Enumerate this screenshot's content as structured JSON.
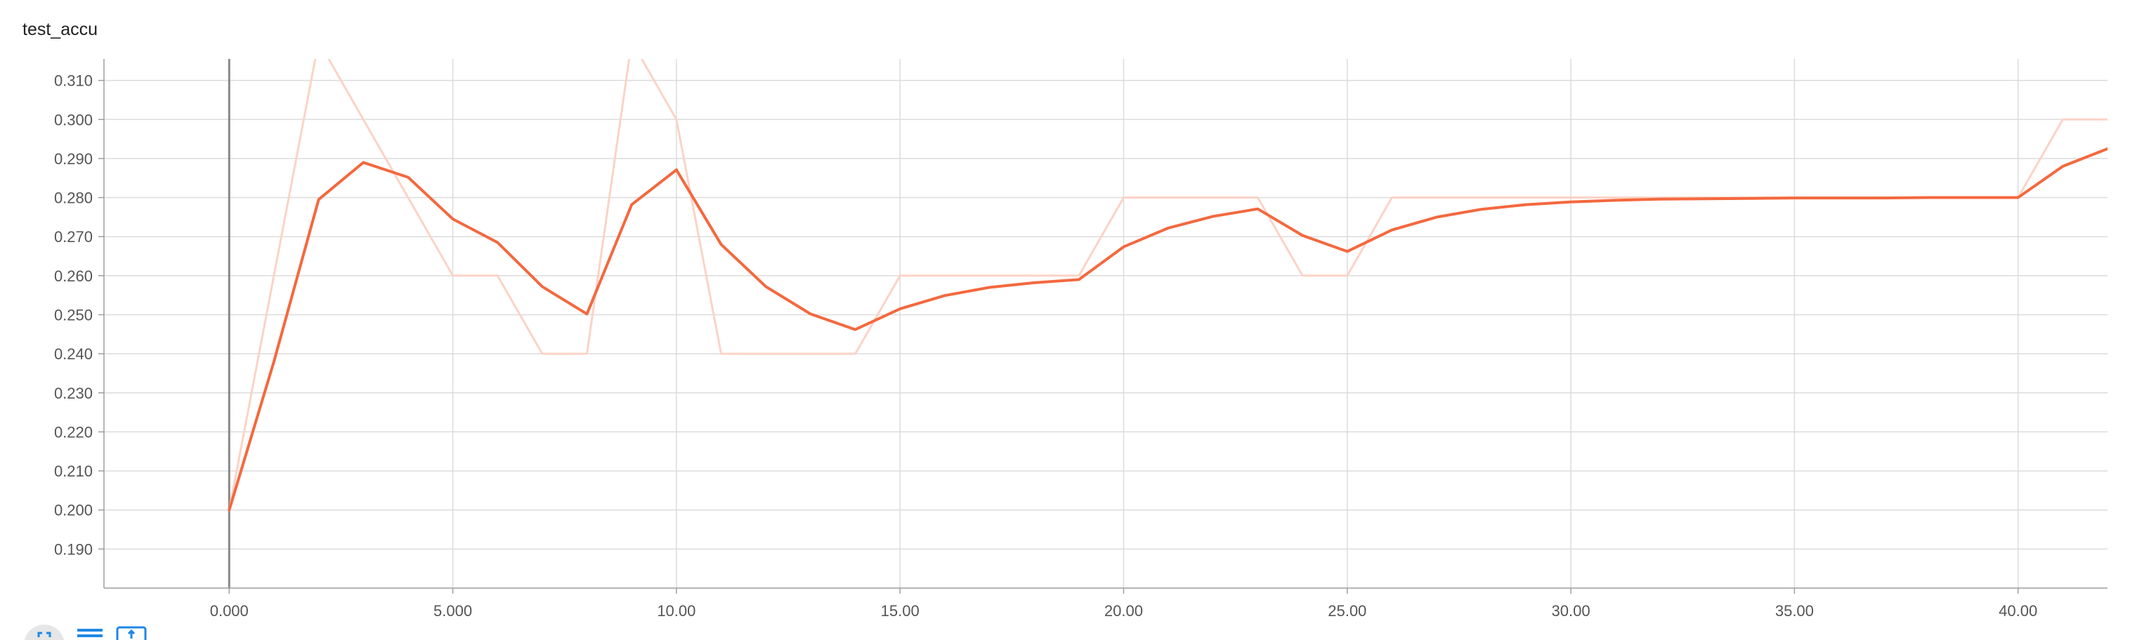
{
  "chart_data": {
    "type": "line",
    "title": "test_accu",
    "x_ticks": [
      "0.000",
      "5.000",
      "10.00",
      "15.00",
      "20.00",
      "25.00",
      "30.00",
      "35.00",
      "40.00"
    ],
    "x_tick_values": [
      0,
      5,
      10,
      15,
      20,
      25,
      30,
      35,
      40
    ],
    "y_ticks": [
      "0.190",
      "0.200",
      "0.210",
      "0.220",
      "0.230",
      "0.240",
      "0.250",
      "0.260",
      "0.270",
      "0.280",
      "0.290",
      "0.300",
      "0.310"
    ],
    "y_tick_values": [
      0.19,
      0.2,
      0.21,
      0.22,
      0.23,
      0.24,
      0.25,
      0.26,
      0.27,
      0.28,
      0.29,
      0.3,
      0.31
    ],
    "xlim": [
      -2.8,
      42
    ],
    "ylim": [
      0.18,
      0.3155
    ],
    "grid": true,
    "series": [
      {
        "role": "raw",
        "color": "#fbd3c7",
        "x": [
          0,
          1,
          2,
          3,
          4,
          5,
          6,
          7,
          8,
          9,
          10,
          11,
          12,
          13,
          14,
          15,
          16,
          17,
          18,
          19,
          20,
          21,
          22,
          23,
          24,
          25,
          26,
          27,
          28,
          29,
          30,
          31,
          32,
          33,
          34,
          35,
          36,
          37,
          38,
          39,
          40,
          41,
          42
        ],
        "y": [
          0.2,
          0.26,
          0.32,
          0.3,
          0.28,
          0.26,
          0.26,
          0.24,
          0.24,
          0.32,
          0.3,
          0.24,
          0.24,
          0.24,
          0.24,
          0.26,
          0.26,
          0.26,
          0.26,
          0.26,
          0.28,
          0.28,
          0.28,
          0.28,
          0.26,
          0.26,
          0.28,
          0.28,
          0.28,
          0.28,
          0.28,
          0.28,
          0.28,
          0.28,
          0.28,
          0.28,
          0.28,
          0.28,
          0.28,
          0.28,
          0.28,
          0.3,
          0.3
        ]
      },
      {
        "role": "smoothed",
        "color": "#f4683e",
        "x": [
          0,
          1,
          2,
          3,
          4,
          5,
          6,
          7,
          8,
          9,
          10,
          11,
          12,
          13,
          14,
          15,
          16,
          17,
          18,
          19,
          20,
          21,
          22,
          23,
          24,
          25,
          26,
          27,
          28,
          29,
          30,
          31,
          32,
          33,
          34,
          35,
          36,
          37,
          38,
          39,
          40,
          41,
          42
        ],
        "y": [
          0.2,
          0.238,
          0.2795,
          0.289,
          0.2852,
          0.2745,
          0.2685,
          0.2572,
          0.2502,
          0.2782,
          0.2871,
          0.268,
          0.2572,
          0.2502,
          0.2462,
          0.2515,
          0.2549,
          0.257,
          0.2582,
          0.259,
          0.2674,
          0.2722,
          0.2752,
          0.2771,
          0.2703,
          0.2662,
          0.2717,
          0.275,
          0.277,
          0.2782,
          0.2789,
          0.2793,
          0.2796,
          0.2797,
          0.2798,
          0.2799,
          0.2799,
          0.2799,
          0.28,
          0.28,
          0.28,
          0.288,
          0.2925
        ]
      }
    ]
  },
  "toolbar": {
    "buttons": [
      {
        "icon": "expand-icon",
        "color": "#1e88e5"
      },
      {
        "icon": "toggle-log-scale-icon",
        "color": "#1e88e5"
      },
      {
        "icon": "fit-domain-icon",
        "color": "#1e88e5"
      }
    ]
  }
}
